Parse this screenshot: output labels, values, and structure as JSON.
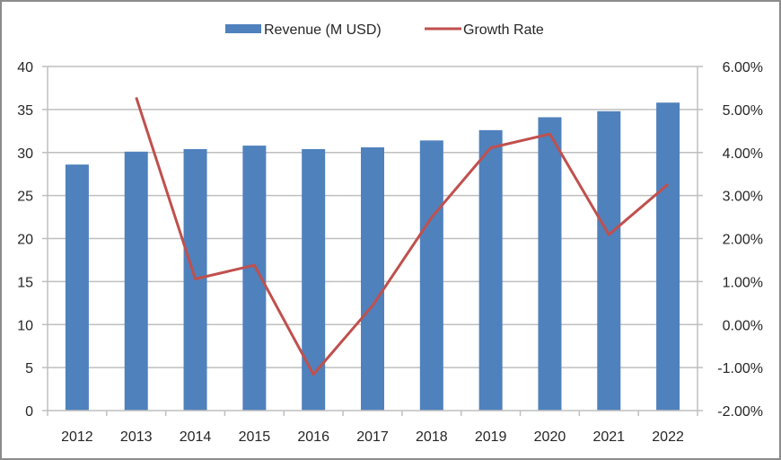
{
  "chart_data": {
    "type": "bar",
    "title": "",
    "xlabel": "",
    "ylabel": "",
    "y2label": "",
    "categories": [
      "2012",
      "2013",
      "2014",
      "2015",
      "2016",
      "2017",
      "2018",
      "2019",
      "2020",
      "2021",
      "2022"
    ],
    "series": [
      {
        "name": "Revenue (M USD)",
        "type": "bar",
        "axis": "left",
        "color": "#4f81bd",
        "values": [
          28.6,
          30.1,
          30.4,
          30.8,
          30.4,
          30.6,
          31.4,
          32.6,
          34.1,
          34.8,
          35.8
        ]
      },
      {
        "name": "Growth Rate",
        "type": "line",
        "axis": "right",
        "color": "#c0504d",
        "values": [
          null,
          5.28,
          1.06,
          1.38,
          -1.16,
          0.44,
          2.49,
          4.11,
          4.43,
          2.09,
          3.26
        ]
      }
    ],
    "ylim": [
      0,
      40
    ],
    "yticks": [
      0,
      5,
      10,
      15,
      20,
      25,
      30,
      35,
      40
    ],
    "ytick_labels": [
      "0",
      "5",
      "10",
      "15",
      "20",
      "25",
      "30",
      "35",
      "40"
    ],
    "y2lim": [
      -2,
      6
    ],
    "y2ticks": [
      -2,
      -1,
      0,
      1,
      2,
      3,
      4,
      5,
      6
    ],
    "y2tick_labels": [
      "-2.00%",
      "-1.00%",
      "0.00%",
      "1.00%",
      "2.00%",
      "3.00%",
      "4.00%",
      "5.00%",
      "6.00%"
    ],
    "grid": true,
    "gridline_color": "#bfbfbf",
    "legend_position": "top-center",
    "legend": [
      "Revenue (M USD)",
      "Growth Rate"
    ]
  }
}
